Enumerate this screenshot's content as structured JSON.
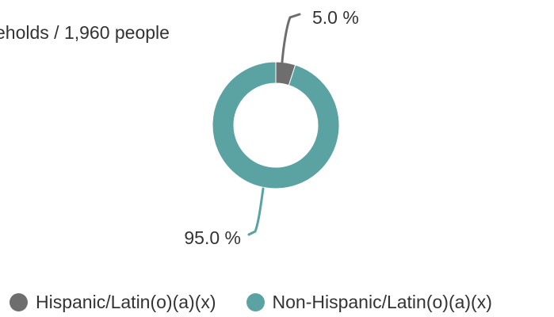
{
  "caption": "eholds / 1,960 people",
  "chart_data": {
    "type": "pie",
    "style": "donut",
    "categories": [
      "Hispanic/Latin(o)(a)(x)",
      "Non-Hispanic/Latin(o)(a)(x)"
    ],
    "values": [
      5.0,
      95.0
    ],
    "value_labels": [
      "5.0 %",
      "95.0 %"
    ],
    "colors": [
      "#6e6e6e",
      "#5ba3a3"
    ],
    "legend_position": "bottom"
  }
}
